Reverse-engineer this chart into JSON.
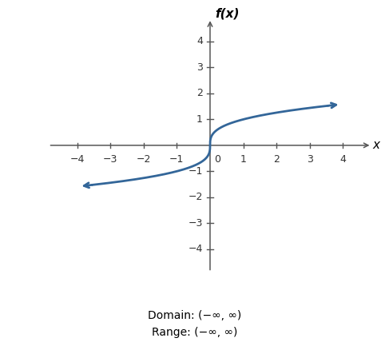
{
  "title": "f(x)",
  "xlabel": "x",
  "curve_color": "#336699",
  "curve_linewidth": 2.0,
  "xlim": [
    -4.8,
    4.8
  ],
  "ylim": [
    -4.8,
    4.8
  ],
  "xticks": [
    -4,
    -3,
    -2,
    -1,
    1,
    2,
    3,
    4
  ],
  "yticks": [
    -4,
    -3,
    -2,
    -1,
    1,
    2,
    3,
    4
  ],
  "domain_label": "Domain: (−∞, ∞)",
  "range_label": "Range: (−∞, ∞)",
  "background_color": "#ffffff",
  "axis_color": "#555555",
  "tick_label_color": "#333333",
  "curve_x_start": -3.8,
  "curve_x_end": 3.8,
  "tick_fontsize": 9,
  "label_fontsize": 11,
  "annotation_fontsize": 10
}
